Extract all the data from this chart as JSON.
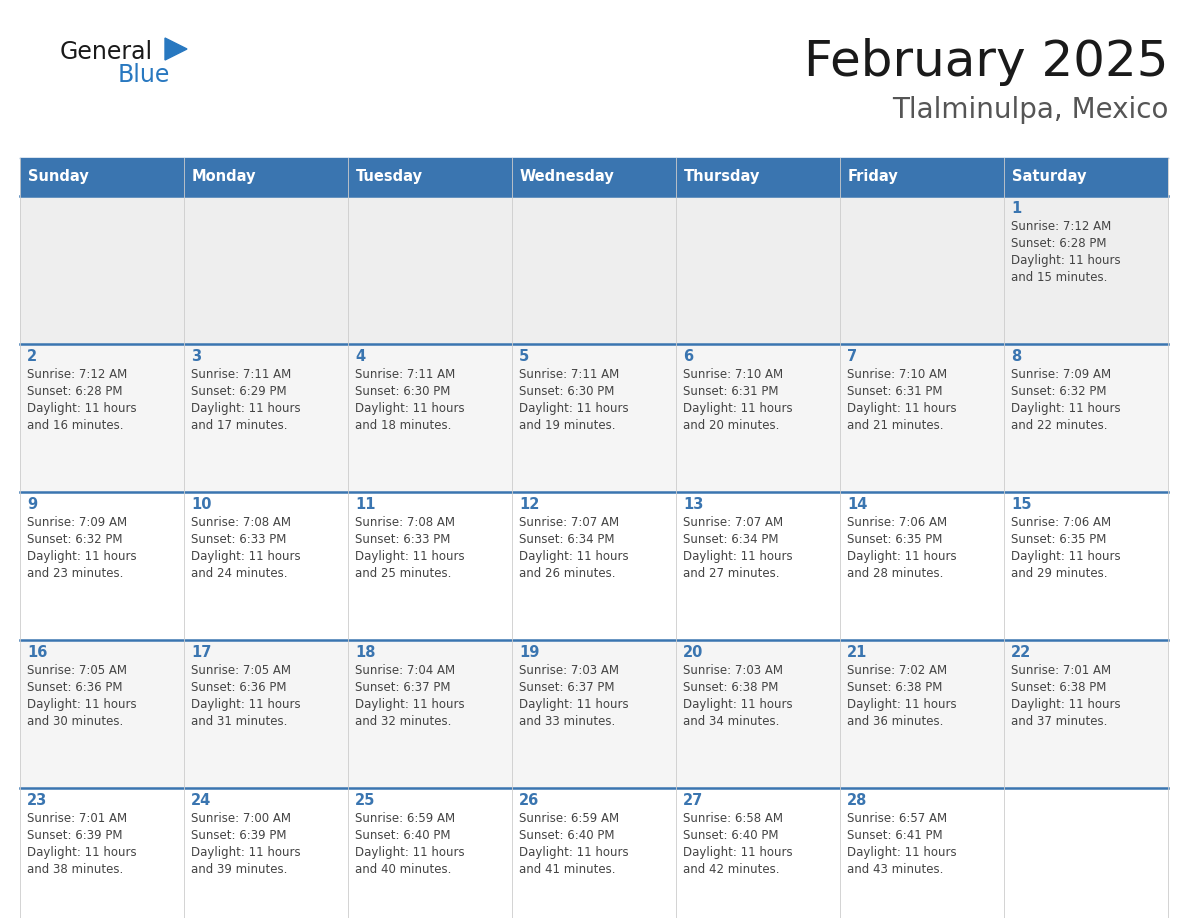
{
  "title": "February 2025",
  "subtitle": "Tlalminulpa, Mexico",
  "header_bg": "#3a75b0",
  "header_text_color": "#ffffff",
  "weekdays": [
    "Sunday",
    "Monday",
    "Tuesday",
    "Wednesday",
    "Thursday",
    "Friday",
    "Saturday"
  ],
  "row0_bg": "#eeeeee",
  "row1_bg": "#f5f5f5",
  "row2_bg": "#ffffff",
  "row3_bg": "#f5f5f5",
  "row4_bg": "#ffffff",
  "cell_border_color": "#3a75b0",
  "day_number_color": "#3a75b0",
  "info_text_color": "#444444",
  "days": [
    {
      "day": 1,
      "col": 6,
      "row": 0,
      "sunrise": "7:12 AM",
      "sunset": "6:28 PM",
      "daylight_h": "11 hours",
      "daylight_m": "and 15 minutes."
    },
    {
      "day": 2,
      "col": 0,
      "row": 1,
      "sunrise": "7:12 AM",
      "sunset": "6:28 PM",
      "daylight_h": "11 hours",
      "daylight_m": "and 16 minutes."
    },
    {
      "day": 3,
      "col": 1,
      "row": 1,
      "sunrise": "7:11 AM",
      "sunset": "6:29 PM",
      "daylight_h": "11 hours",
      "daylight_m": "and 17 minutes."
    },
    {
      "day": 4,
      "col": 2,
      "row": 1,
      "sunrise": "7:11 AM",
      "sunset": "6:30 PM",
      "daylight_h": "11 hours",
      "daylight_m": "and 18 minutes."
    },
    {
      "day": 5,
      "col": 3,
      "row": 1,
      "sunrise": "7:11 AM",
      "sunset": "6:30 PM",
      "daylight_h": "11 hours",
      "daylight_m": "and 19 minutes."
    },
    {
      "day": 6,
      "col": 4,
      "row": 1,
      "sunrise": "7:10 AM",
      "sunset": "6:31 PM",
      "daylight_h": "11 hours",
      "daylight_m": "and 20 minutes."
    },
    {
      "day": 7,
      "col": 5,
      "row": 1,
      "sunrise": "7:10 AM",
      "sunset": "6:31 PM",
      "daylight_h": "11 hours",
      "daylight_m": "and 21 minutes."
    },
    {
      "day": 8,
      "col": 6,
      "row": 1,
      "sunrise": "7:09 AM",
      "sunset": "6:32 PM",
      "daylight_h": "11 hours",
      "daylight_m": "and 22 minutes."
    },
    {
      "day": 9,
      "col": 0,
      "row": 2,
      "sunrise": "7:09 AM",
      "sunset": "6:32 PM",
      "daylight_h": "11 hours",
      "daylight_m": "and 23 minutes."
    },
    {
      "day": 10,
      "col": 1,
      "row": 2,
      "sunrise": "7:08 AM",
      "sunset": "6:33 PM",
      "daylight_h": "11 hours",
      "daylight_m": "and 24 minutes."
    },
    {
      "day": 11,
      "col": 2,
      "row": 2,
      "sunrise": "7:08 AM",
      "sunset": "6:33 PM",
      "daylight_h": "11 hours",
      "daylight_m": "and 25 minutes."
    },
    {
      "day": 12,
      "col": 3,
      "row": 2,
      "sunrise": "7:07 AM",
      "sunset": "6:34 PM",
      "daylight_h": "11 hours",
      "daylight_m": "and 26 minutes."
    },
    {
      "day": 13,
      "col": 4,
      "row": 2,
      "sunrise": "7:07 AM",
      "sunset": "6:34 PM",
      "daylight_h": "11 hours",
      "daylight_m": "and 27 minutes."
    },
    {
      "day": 14,
      "col": 5,
      "row": 2,
      "sunrise": "7:06 AM",
      "sunset": "6:35 PM",
      "daylight_h": "11 hours",
      "daylight_m": "and 28 minutes."
    },
    {
      "day": 15,
      "col": 6,
      "row": 2,
      "sunrise": "7:06 AM",
      "sunset": "6:35 PM",
      "daylight_h": "11 hours",
      "daylight_m": "and 29 minutes."
    },
    {
      "day": 16,
      "col": 0,
      "row": 3,
      "sunrise": "7:05 AM",
      "sunset": "6:36 PM",
      "daylight_h": "11 hours",
      "daylight_m": "and 30 minutes."
    },
    {
      "day": 17,
      "col": 1,
      "row": 3,
      "sunrise": "7:05 AM",
      "sunset": "6:36 PM",
      "daylight_h": "11 hours",
      "daylight_m": "and 31 minutes."
    },
    {
      "day": 18,
      "col": 2,
      "row": 3,
      "sunrise": "7:04 AM",
      "sunset": "6:37 PM",
      "daylight_h": "11 hours",
      "daylight_m": "and 32 minutes."
    },
    {
      "day": 19,
      "col": 3,
      "row": 3,
      "sunrise": "7:03 AM",
      "sunset": "6:37 PM",
      "daylight_h": "11 hours",
      "daylight_m": "and 33 minutes."
    },
    {
      "day": 20,
      "col": 4,
      "row": 3,
      "sunrise": "7:03 AM",
      "sunset": "6:38 PM",
      "daylight_h": "11 hours",
      "daylight_m": "and 34 minutes."
    },
    {
      "day": 21,
      "col": 5,
      "row": 3,
      "sunrise": "7:02 AM",
      "sunset": "6:38 PM",
      "daylight_h": "11 hours",
      "daylight_m": "and 36 minutes."
    },
    {
      "day": 22,
      "col": 6,
      "row": 3,
      "sunrise": "7:01 AM",
      "sunset": "6:38 PM",
      "daylight_h": "11 hours",
      "daylight_m": "and 37 minutes."
    },
    {
      "day": 23,
      "col": 0,
      "row": 4,
      "sunrise": "7:01 AM",
      "sunset": "6:39 PM",
      "daylight_h": "11 hours",
      "daylight_m": "and 38 minutes."
    },
    {
      "day": 24,
      "col": 1,
      "row": 4,
      "sunrise": "7:00 AM",
      "sunset": "6:39 PM",
      "daylight_h": "11 hours",
      "daylight_m": "and 39 minutes."
    },
    {
      "day": 25,
      "col": 2,
      "row": 4,
      "sunrise": "6:59 AM",
      "sunset": "6:40 PM",
      "daylight_h": "11 hours",
      "daylight_m": "and 40 minutes."
    },
    {
      "day": 26,
      "col": 3,
      "row": 4,
      "sunrise": "6:59 AM",
      "sunset": "6:40 PM",
      "daylight_h": "11 hours",
      "daylight_m": "and 41 minutes."
    },
    {
      "day": 27,
      "col": 4,
      "row": 4,
      "sunrise": "6:58 AM",
      "sunset": "6:40 PM",
      "daylight_h": "11 hours",
      "daylight_m": "and 42 minutes."
    },
    {
      "day": 28,
      "col": 5,
      "row": 4,
      "sunrise": "6:57 AM",
      "sunset": "6:41 PM",
      "daylight_h": "11 hours",
      "daylight_m": "and 43 minutes."
    }
  ]
}
